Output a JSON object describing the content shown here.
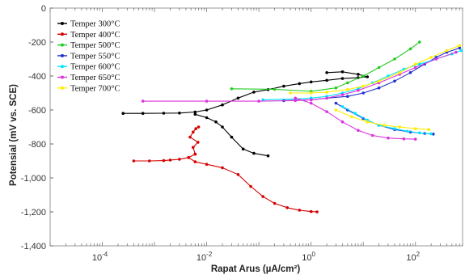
{
  "chart_data": {
    "type": "scatter",
    "title": "",
    "xlabel": "Rapat Arus (µA/cm²)",
    "ylabel": "Potensial (mV vs. SCE)",
    "x_scale": "log",
    "xlim": [
      1e-05,
      800
    ],
    "ylim": [
      -1400,
      0
    ],
    "x_ticks": [
      {
        "value": 0.0001,
        "label": "10-4",
        "base": "10",
        "exp": "-4"
      },
      {
        "value": 0.01,
        "label": "10-2",
        "base": "10",
        "exp": "-2"
      },
      {
        "value": 1,
        "label": "100",
        "base": "10",
        "exp": "0"
      },
      {
        "value": 100,
        "label": "102",
        "base": "10",
        "exp": "2"
      }
    ],
    "y_ticks": [
      {
        "value": 0,
        "label": "0"
      },
      {
        "value": -200,
        "label": "-200"
      },
      {
        "value": -400,
        "label": "-400"
      },
      {
        "value": -600,
        "label": "-600"
      },
      {
        "value": -800,
        "label": "-800"
      },
      {
        "value": -1000,
        "label": "-1,000"
      },
      {
        "value": -1200,
        "label": "-1,200"
      },
      {
        "value": -1400,
        "label": "-1,400"
      }
    ],
    "grid": false,
    "legend_position": "top-left",
    "series": [
      {
        "name": "Temper 300°C",
        "color": "#000000",
        "x": [
          0.00025,
          0.0006,
          0.0015,
          0.003,
          0.006,
          0.01,
          0.02,
          0.04,
          0.08,
          0.15,
          0.3,
          0.6,
          1,
          2,
          4,
          8,
          12,
          8,
          4,
          2
        ],
        "y": [
          -620,
          -620,
          -619,
          -618,
          -612,
          -600,
          -570,
          -530,
          -495,
          -480,
          -460,
          -445,
          -435,
          -425,
          -415,
          -410,
          -405,
          -390,
          -375,
          -380
        ]
      },
      {
        "name": "Temper 300°C",
        "color": "#000000",
        "x": [
          0.006,
          0.01,
          0.015,
          0.02,
          0.03,
          0.05,
          0.08,
          0.15
        ],
        "y": [
          -625,
          -645,
          -670,
          -700,
          -760,
          -830,
          -855,
          -870
        ]
      },
      {
        "name": "Temper 400°C",
        "color": "#d40000",
        "x": [
          0.0004,
          0.0008,
          0.0015,
          0.002,
          0.003,
          0.0045,
          0.006
        ],
        "y": [
          -900,
          -900,
          -898,
          -895,
          -890,
          -880,
          -860
        ]
      },
      {
        "name": "Temper 400°C",
        "color": "#d40000",
        "x": [
          0.006,
          0.0055,
          0.0068,
          0.0048,
          0.0055,
          0.0062,
          0.007
        ],
        "y": [
          -860,
          -820,
          -790,
          -760,
          -730,
          -710,
          -700
        ]
      },
      {
        "name": "Temper 400°C",
        "color": "#d40000",
        "x": [
          0.0045,
          0.006,
          0.01,
          0.02,
          0.04,
          0.07,
          0.12,
          0.2,
          0.35,
          0.6,
          1,
          1.3
        ],
        "y": [
          -880,
          -905,
          -920,
          -940,
          -980,
          -1050,
          -1110,
          -1150,
          -1175,
          -1190,
          -1198,
          -1200
        ]
      },
      {
        "name": "Temper 500°C",
        "color": "#22cc22",
        "x": [
          0.03,
          0.2,
          1,
          3,
          5,
          10,
          20,
          40,
          80,
          120
        ],
        "y": [
          -475,
          -478,
          -490,
          -470,
          -440,
          -400,
          -350,
          -300,
          -240,
          -200
        ]
      },
      {
        "name": "Temper 550°C",
        "color": "#2233cc",
        "x": [
          0.3,
          1,
          2,
          5,
          10,
          20,
          40,
          80,
          150,
          250,
          400,
          700
        ],
        "y": [
          -545,
          -540,
          -530,
          -520,
          -500,
          -470,
          -430,
          -380,
          -330,
          -290,
          -260,
          -235
        ]
      },
      {
        "name": "Temper 550°C",
        "color": "#2233cc",
        "x": [
          3,
          5,
          10,
          20,
          40,
          80,
          150,
          220
        ],
        "y": [
          -560,
          -600,
          -650,
          -690,
          -715,
          -730,
          -738,
          -742
        ]
      },
      {
        "name": "Temper 600°C",
        "color": "#00e5ff",
        "x": [
          0.12,
          0.5,
          1,
          2,
          4,
          8,
          15,
          30,
          60,
          120,
          250,
          500,
          750
        ],
        "y": [
          -540,
          -535,
          -530,
          -520,
          -500,
          -475,
          -440,
          -400,
          -360,
          -330,
          -300,
          -270,
          -250
        ]
      },
      {
        "name": "Temper 600°C",
        "color": "#00e5ff",
        "x": [
          4,
          7,
          12,
          20,
          40,
          70,
          120,
          200
        ],
        "y": [
          -580,
          -620,
          -660,
          -690,
          -710,
          -725,
          -735,
          -740
        ]
      },
      {
        "name": "Temper 650°C",
        "color": "#dd33dd",
        "x": [
          0.0006,
          0.01,
          0.1,
          0.5,
          1,
          2,
          4,
          8,
          20,
          50,
          100,
          250,
          600
        ],
        "y": [
          -548,
          -548,
          -548,
          -545,
          -540,
          -530,
          -510,
          -485,
          -440,
          -390,
          -350,
          -300,
          -260
        ]
      },
      {
        "name": "Temper 650°C",
        "color": "#dd33dd",
        "x": [
          0.5,
          1,
          2,
          4,
          8,
          15,
          30,
          60,
          100
        ],
        "y": [
          -530,
          -560,
          -610,
          -670,
          -720,
          -750,
          -765,
          -770,
          -772
        ]
      },
      {
        "name": "Temper 700°C",
        "color": "#ffee00",
        "x": [
          0.4,
          1,
          2,
          5,
          10,
          20,
          50,
          100,
          200,
          400,
          700
        ],
        "y": [
          -500,
          -500,
          -495,
          -480,
          -460,
          -430,
          -380,
          -330,
          -290,
          -250,
          -220
        ]
      },
      {
        "name": "Temper 700°C",
        "color": "#ffee00",
        "x": [
          3,
          6,
          12,
          25,
          50,
          100,
          180
        ],
        "y": [
          -600,
          -640,
          -670,
          -690,
          -700,
          -710,
          -715
        ]
      }
    ],
    "legend": [
      {
        "label": "Temper 300°C",
        "color": "#000000"
      },
      {
        "label": "Temper 400°C",
        "color": "#d40000"
      },
      {
        "label": "Temper 500°C",
        "color": "#22cc22"
      },
      {
        "label": "Temper 550°C",
        "color": "#2233cc"
      },
      {
        "label": "Temper 600°C",
        "color": "#00e5ff"
      },
      {
        "label": "Temper 650°C",
        "color": "#dd33dd"
      },
      {
        "label": "Temper 700°C",
        "color": "#ffee00"
      }
    ]
  }
}
